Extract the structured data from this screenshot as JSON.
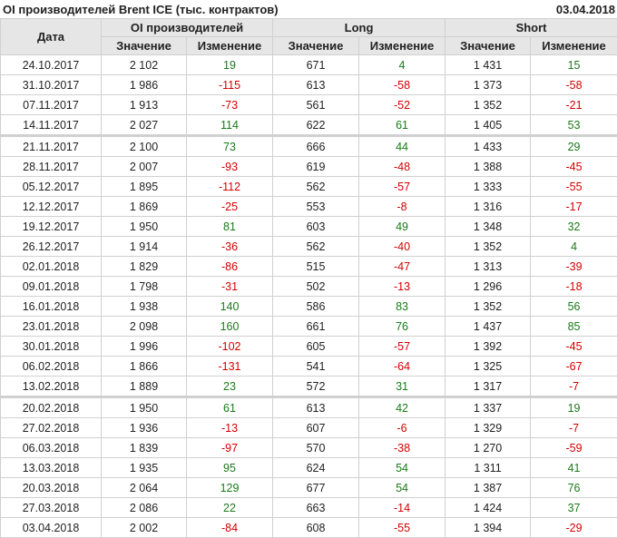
{
  "title": "OI производителей Brent ICE (тыс. контрактов)",
  "date": "03.04.2018",
  "colors": {
    "positive": "#1a7a1a",
    "negative": "#d40000",
    "header_bg": "#e6e6e6"
  },
  "header": {
    "date": "Дата",
    "groups": [
      "OI производителей",
      "Long",
      "Short"
    ],
    "value": "Значение",
    "change": "Изменение"
  },
  "rows": [
    [
      "24.10.2017",
      "2 102",
      "19",
      "671",
      "4",
      "1 431",
      "15"
    ],
    [
      "31.10.2017",
      "1 986",
      "-115",
      "613",
      "-58",
      "1 373",
      "-58"
    ],
    [
      "07.11.2017",
      "1 913",
      "-73",
      "561",
      "-52",
      "1 352",
      "-21"
    ],
    [
      "14.11.2017",
      "2 027",
      "114",
      "622",
      "61",
      "1 405",
      "53"
    ],
    [
      "21.11.2017",
      "2 100",
      "73",
      "666",
      "44",
      "1 433",
      "29"
    ],
    [
      "28.11.2017",
      "2 007",
      "-93",
      "619",
      "-48",
      "1 388",
      "-45"
    ],
    [
      "05.12.2017",
      "1 895",
      "-112",
      "562",
      "-57",
      "1 333",
      "-55"
    ],
    [
      "12.12.2017",
      "1 869",
      "-25",
      "553",
      "-8",
      "1 316",
      "-17"
    ],
    [
      "19.12.2017",
      "1 950",
      "81",
      "603",
      "49",
      "1 348",
      "32"
    ],
    [
      "26.12.2017",
      "1 914",
      "-36",
      "562",
      "-40",
      "1 352",
      "4"
    ],
    [
      "02.01.2018",
      "1 829",
      "-86",
      "515",
      "-47",
      "1 313",
      "-39"
    ],
    [
      "09.01.2018",
      "1 798",
      "-31",
      "502",
      "-13",
      "1 296",
      "-18"
    ],
    [
      "16.01.2018",
      "1 938",
      "140",
      "586",
      "83",
      "1 352",
      "56"
    ],
    [
      "23.01.2018",
      "2 098",
      "160",
      "661",
      "76",
      "1 437",
      "85"
    ],
    [
      "30.01.2018",
      "1 996",
      "-102",
      "605",
      "-57",
      "1 392",
      "-45"
    ],
    [
      "06.02.2018",
      "1 866",
      "-131",
      "541",
      "-64",
      "1 325",
      "-67"
    ],
    [
      "13.02.2018",
      "1 889",
      "23",
      "572",
      "31",
      "1 317",
      "-7"
    ],
    [
      "20.02.2018",
      "1 950",
      "61",
      "613",
      "42",
      "1 337",
      "19"
    ],
    [
      "27.02.2018",
      "1 936",
      "-13",
      "607",
      "-6",
      "1 329",
      "-7"
    ],
    [
      "06.03.2018",
      "1 839",
      "-97",
      "570",
      "-38",
      "1 270",
      "-59"
    ],
    [
      "13.03.2018",
      "1 935",
      "95",
      "624",
      "54",
      "1 311",
      "41"
    ],
    [
      "20.03.2018",
      "2 064",
      "129",
      "677",
      "54",
      "1 387",
      "76"
    ],
    [
      "27.03.2018",
      "2 086",
      "22",
      "663",
      "-14",
      "1 424",
      "37"
    ],
    [
      "03.04.2018",
      "2 002",
      "-84",
      "608",
      "-55",
      "1 394",
      "-29"
    ]
  ]
}
